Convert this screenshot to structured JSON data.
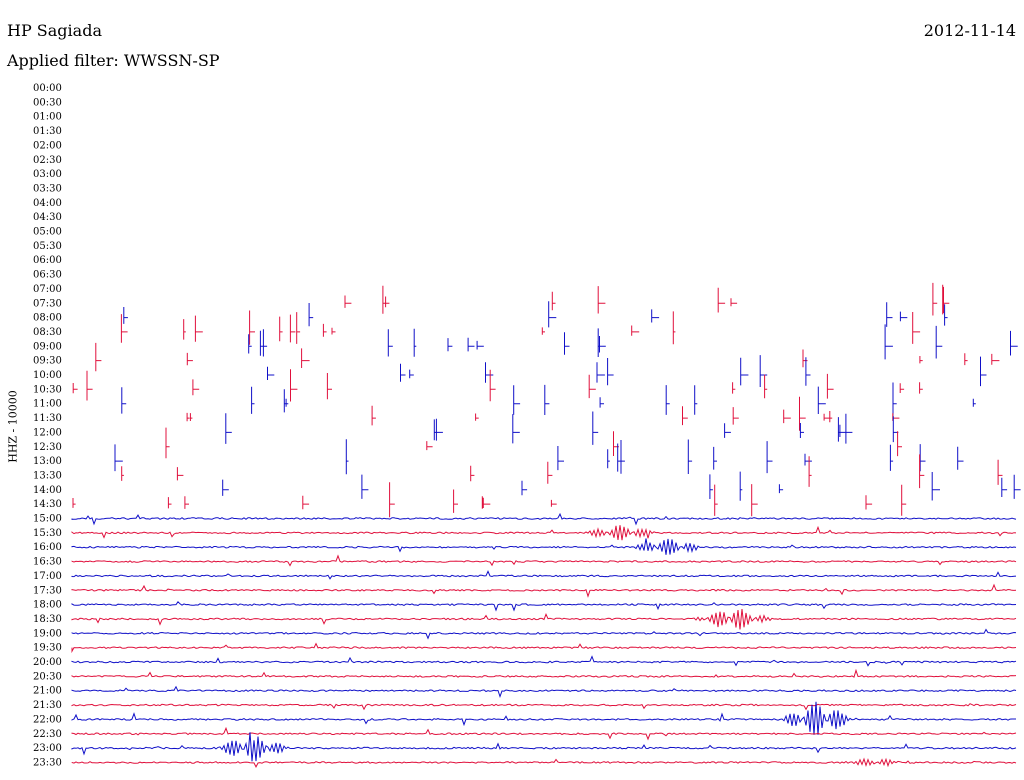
{
  "header": {
    "station": "HP Sagiada",
    "filter": "Applied filter: WWSSN-SP",
    "date": "2012-11-14"
  },
  "chart_data": {
    "type": "line",
    "title": "HP Sagiada",
    "subtitle": "Applied filter: WWSSN-SP",
    "ylabel": "HHZ - 10000",
    "xlabel": "",
    "grid": false,
    "colors": {
      "even_rows": "#1010c8",
      "odd_rows": "#e0103c"
    },
    "rows": [
      "00:00",
      "00:30",
      "01:00",
      "01:30",
      "02:00",
      "02:30",
      "03:00",
      "03:30",
      "04:00",
      "04:30",
      "05:00",
      "05:30",
      "06:00",
      "06:30",
      "07:00",
      "07:30",
      "08:00",
      "08:30",
      "09:00",
      "09:30",
      "10:00",
      "10:30",
      "11:00",
      "11:30",
      "12:00",
      "12:30",
      "13:00",
      "13:30",
      "14:00",
      "14:30",
      "15:00",
      "15:30",
      "16:00",
      "16:30",
      "17:00",
      "17:30",
      "18:00",
      "18:30",
      "19:00",
      "19:30",
      "20:00",
      "20:30",
      "21:00",
      "21:30",
      "22:00",
      "22:30",
      "23:00",
      "23:30"
    ],
    "continuous_from_row": 30,
    "events": [
      {
        "row": 31,
        "x": 0.58,
        "amp": 8
      },
      {
        "row": 32,
        "x": 0.63,
        "amp": 9
      },
      {
        "row": 46,
        "x": 0.19,
        "amp": 14
      },
      {
        "row": 44,
        "x": 0.79,
        "amp": 18
      },
      {
        "row": 37,
        "x": 0.7,
        "amp": 12
      },
      {
        "row": 47,
        "x": 0.85,
        "amp": 4
      }
    ]
  }
}
